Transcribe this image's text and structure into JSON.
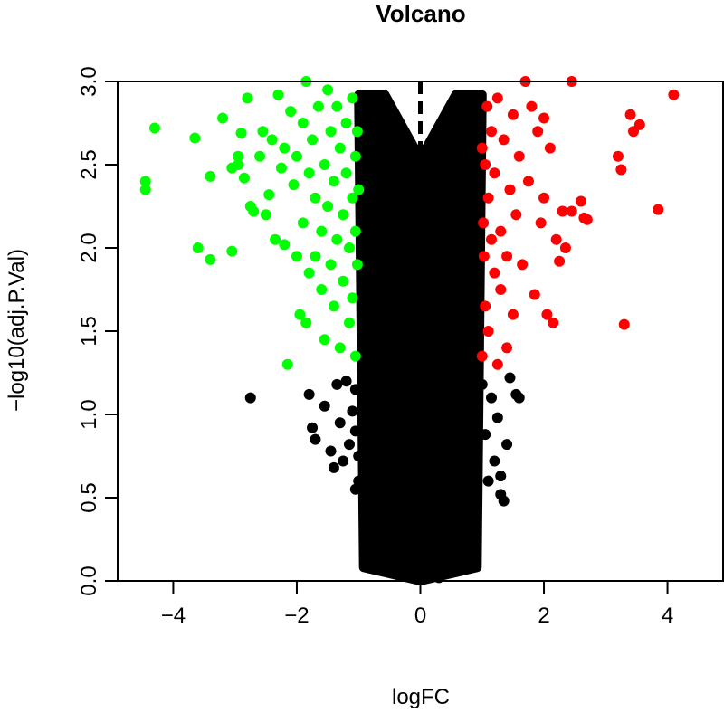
{
  "chart_data": {
    "type": "scatter",
    "title": "Volcano",
    "xlabel": "logFC",
    "ylabel": "−log10(adj.P.Val)",
    "xlim": [
      -4.9,
      4.9
    ],
    "ylim": [
      0,
      3.0
    ],
    "xticks": [
      -4,
      -2,
      0,
      2,
      4
    ],
    "xtick_labels": [
      "−4",
      "−2",
      "0",
      "2",
      "4"
    ],
    "yticks": [
      0.0,
      0.5,
      1.0,
      1.5,
      2.0,
      2.5,
      3.0
    ],
    "ytick_labels": [
      "0.0",
      "0.5",
      "1.0",
      "1.5",
      "2.0",
      "2.5",
      "3.0"
    ],
    "thresholds": {
      "logFC": [
        -1,
        1
      ],
      "neg_log10_adjP": 1.3
    },
    "grid": false,
    "colors": {
      "down": "#00ff00",
      "up": "#ff0000",
      "not_significant": "#000000"
    },
    "series": [
      {
        "key": "down",
        "color": "#00ff00",
        "points": [
          [
            -4.45,
            2.4
          ],
          [
            -4.45,
            2.35
          ],
          [
            -4.3,
            2.72
          ],
          [
            -3.65,
            2.66
          ],
          [
            -3.6,
            2.0
          ],
          [
            -3.4,
            1.93
          ],
          [
            -3.4,
            2.43
          ],
          [
            -3.2,
            2.78
          ],
          [
            -3.05,
            1.98
          ],
          [
            -3.05,
            2.48
          ],
          [
            -2.95,
            2.55
          ],
          [
            -2.95,
            2.5
          ],
          [
            -2.9,
            2.69
          ],
          [
            -2.85,
            2.42
          ],
          [
            -2.8,
            2.9
          ],
          [
            -2.75,
            2.25
          ],
          [
            -2.7,
            2.22
          ],
          [
            -2.6,
            2.55
          ],
          [
            -2.55,
            2.7
          ],
          [
            -2.5,
            2.2
          ],
          [
            -2.45,
            2.32
          ],
          [
            -2.4,
            2.65
          ],
          [
            -2.35,
            2.05
          ],
          [
            -2.3,
            2.92
          ],
          [
            -2.25,
            2.48
          ],
          [
            -2.2,
            2.6
          ],
          [
            -2.2,
            2.02
          ],
          [
            -2.15,
            1.3
          ],
          [
            -2.1,
            2.82
          ],
          [
            -2.05,
            2.38
          ],
          [
            -2.0,
            2.55
          ],
          [
            -2.0,
            1.95
          ],
          [
            -1.95,
            1.6
          ],
          [
            -1.9,
            2.75
          ],
          [
            -1.9,
            2.15
          ],
          [
            -1.85,
            3.0
          ],
          [
            -1.85,
            1.55
          ],
          [
            -1.8,
            2.45
          ],
          [
            -1.8,
            1.85
          ],
          [
            -1.75,
            2.65
          ],
          [
            -1.7,
            2.3
          ],
          [
            -1.7,
            1.95
          ],
          [
            -1.65,
            2.85
          ],
          [
            -1.6,
            2.1
          ],
          [
            -1.6,
            1.75
          ],
          [
            -1.55,
            2.5
          ],
          [
            -1.55,
            1.45
          ],
          [
            -1.5,
            2.95
          ],
          [
            -1.5,
            2.25
          ],
          [
            -1.45,
            1.9
          ],
          [
            -1.45,
            2.7
          ],
          [
            -1.4,
            2.4
          ],
          [
            -1.4,
            1.65
          ],
          [
            -1.35,
            2.85
          ],
          [
            -1.35,
            2.05
          ],
          [
            -1.3,
            1.4
          ],
          [
            -1.3,
            2.6
          ],
          [
            -1.25,
            2.2
          ],
          [
            -1.25,
            1.8
          ],
          [
            -1.2,
            2.75
          ],
          [
            -1.2,
            2.45
          ],
          [
            -1.15,
            1.55
          ],
          [
            -1.15,
            2.0
          ],
          [
            -1.1,
            2.9
          ],
          [
            -1.1,
            2.3
          ],
          [
            -1.1,
            1.7
          ],
          [
            -1.05,
            2.55
          ],
          [
            -1.05,
            1.35
          ],
          [
            -1.05,
            2.1
          ],
          [
            -1.02,
            1.9
          ],
          [
            -1.02,
            2.7
          ],
          [
            -1.0,
            2.35
          ]
        ]
      },
      {
        "key": "up",
        "color": "#ff0000",
        "points": [
          [
            4.1,
            2.92
          ],
          [
            3.85,
            2.23
          ],
          [
            3.55,
            2.74
          ],
          [
            3.45,
            2.7
          ],
          [
            3.4,
            2.8
          ],
          [
            3.3,
            1.54
          ],
          [
            3.25,
            2.47
          ],
          [
            3.2,
            2.55
          ],
          [
            2.7,
            2.17
          ],
          [
            2.65,
            2.18
          ],
          [
            2.6,
            2.28
          ],
          [
            2.45,
            3.0
          ],
          [
            2.45,
            2.22
          ],
          [
            2.35,
            2.0
          ],
          [
            2.3,
            2.22
          ],
          [
            2.25,
            1.92
          ],
          [
            2.2,
            2.05
          ],
          [
            2.15,
            1.55
          ],
          [
            2.1,
            2.6
          ],
          [
            2.05,
            1.6
          ],
          [
            2.0,
            2.78
          ],
          [
            2.0,
            2.3
          ],
          [
            1.95,
            2.15
          ],
          [
            1.9,
            2.7
          ],
          [
            1.85,
            1.72
          ],
          [
            1.8,
            2.85
          ],
          [
            1.75,
            2.4
          ],
          [
            1.7,
            3.0
          ],
          [
            1.65,
            1.9
          ],
          [
            1.6,
            2.55
          ],
          [
            1.55,
            2.2
          ],
          [
            1.5,
            2.8
          ],
          [
            1.5,
            1.6
          ],
          [
            1.45,
            2.35
          ],
          [
            1.4,
            1.95
          ],
          [
            1.4,
            1.4
          ],
          [
            1.35,
            2.65
          ],
          [
            1.3,
            2.1
          ],
          [
            1.3,
            1.75
          ],
          [
            1.25,
            2.9
          ],
          [
            1.25,
            1.3
          ],
          [
            1.2,
            2.45
          ],
          [
            1.2,
            1.85
          ],
          [
            1.15,
            2.7
          ],
          [
            1.15,
            2.05
          ],
          [
            1.1,
            1.5
          ],
          [
            1.1,
            2.3
          ],
          [
            1.08,
            2.85
          ],
          [
            1.05,
            1.65
          ],
          [
            1.05,
            2.5
          ],
          [
            1.03,
            1.95
          ],
          [
            1.02,
            2.15
          ],
          [
            1.0,
            1.35
          ],
          [
            1.0,
            2.6
          ]
        ]
      },
      {
        "key": "not_significant",
        "color": "#000000",
        "points": [
          [
            -2.75,
            1.1
          ],
          [
            -1.8,
            1.12
          ],
          [
            -1.75,
            0.92
          ],
          [
            -1.7,
            0.85
          ],
          [
            -1.55,
            1.05
          ],
          [
            -1.45,
            0.78
          ],
          [
            -1.4,
            0.68
          ],
          [
            -1.35,
            1.18
          ],
          [
            -1.3,
            0.95
          ],
          [
            -1.25,
            0.72
          ],
          [
            -1.2,
            1.2
          ],
          [
            -1.15,
            0.82
          ],
          [
            -1.1,
            1.02
          ],
          [
            -1.05,
            0.55
          ],
          [
            -1.05,
            0.9
          ],
          [
            -1.05,
            1.15
          ],
          [
            -1.0,
            0.6
          ],
          [
            -1.0,
            0.75
          ],
          [
            1.0,
            1.18
          ],
          [
            1.05,
            0.88
          ],
          [
            1.1,
            0.6
          ],
          [
            1.15,
            1.1
          ],
          [
            1.2,
            0.72
          ],
          [
            1.25,
            0.98
          ],
          [
            1.3,
            0.52
          ],
          [
            1.3,
            0.63
          ],
          [
            1.35,
            0.48
          ],
          [
            1.4,
            0.82
          ],
          [
            1.45,
            1.22
          ],
          [
            1.55,
            1.12
          ],
          [
            1.6,
            1.1
          ],
          [
            0.75,
            0.28
          ],
          [
            -0.8,
            0.32
          ],
          [
            0.6,
            0.1
          ],
          [
            -0.6,
            0.12
          ],
          [
            0.3,
            0.02
          ],
          [
            -0.3,
            0.03
          ],
          [
            0.9,
            0.45
          ],
          [
            -0.9,
            0.38
          ],
          [
            0.85,
            0.15
          ]
        ]
      }
    ],
    "dense_regions": [
      {
        "key": "left-band",
        "x_range": [
          -1.0,
          -0.05
        ],
        "y_floor": 0.0,
        "y_top": 2.92
      },
      {
        "key": "right-band",
        "x_range": [
          0.05,
          1.0
        ],
        "y_floor": 0.0,
        "y_top": 2.92
      }
    ]
  }
}
